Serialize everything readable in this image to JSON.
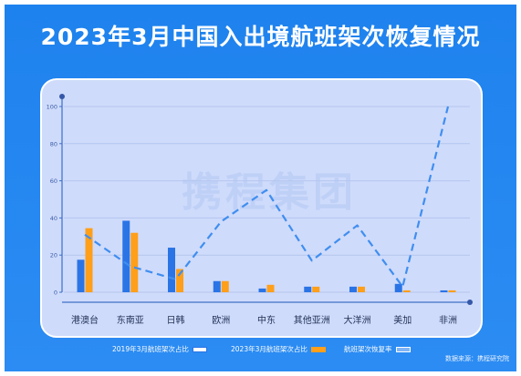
{
  "title": "2023年3月中国入出境航班架次恢复情况",
  "watermark": "携程集团",
  "source": "数据来源：携程研究院",
  "colors": {
    "series_2019": "#2a74e6",
    "series_2023": "#ff9f1a",
    "recovery_line": "#3f8ef0",
    "page_bg": "#1e82ee",
    "panel_bg": "#cfdbfb"
  },
  "chart_data": {
    "type": "bar",
    "categories": [
      "港澳台",
      "东南亚",
      "日韩",
      "欧洲",
      "中东",
      "其他亚洲",
      "大洋洲",
      "美加",
      "非洲"
    ],
    "yticks": [
      0,
      20,
      40,
      60,
      80,
      100
    ],
    "ylim": [
      0,
      100
    ],
    "grid": true,
    "legend_position": "bottom",
    "series": [
      {
        "name": "2019年3月航班架次占比",
        "type": "bar",
        "values": [
          17.5,
          38.5,
          24,
          6,
          2,
          3,
          3,
          4.5,
          1
        ]
      },
      {
        "name": "2023年3月航班架次占比",
        "type": "bar",
        "values": [
          34.5,
          32,
          12.5,
          6,
          4,
          3,
          3,
          1,
          1
        ]
      },
      {
        "name": "航班架次恢复率",
        "type": "line",
        "style": "dashed",
        "values": [
          31,
          14,
          7,
          38,
          55,
          17,
          36,
          3,
          100
        ]
      }
    ]
  }
}
